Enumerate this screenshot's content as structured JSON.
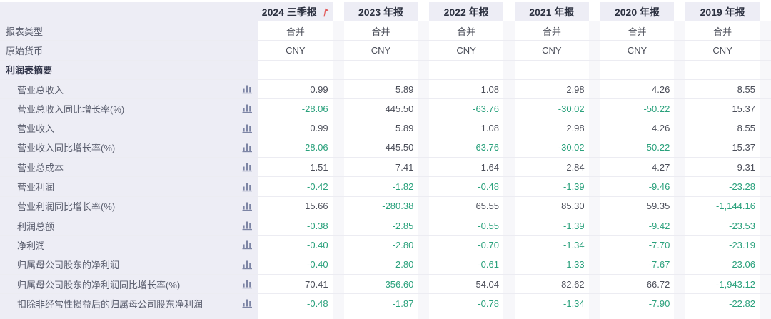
{
  "theme": {
    "header_bg": "#ededf5",
    "label_column_bg": "#ededf5",
    "negative_value_color": "#2aa17c",
    "positive_value_color": "#4c4f5a",
    "chart_icon_color": "#7d85a5",
    "flag_icon_color": "#e25a5a",
    "column_gap_color": "#f7f7fa"
  },
  "table": {
    "columns": [
      "2024 三季报",
      "2023 年报",
      "2022 年报",
      "2021 年报",
      "2020 年报",
      "2019 年报"
    ],
    "flagged_column_index": 0,
    "icons": {
      "flag": "flag-icon",
      "chart": "bar-chart-icon"
    },
    "rows": [
      {
        "kind": "plain",
        "label": "报表类型",
        "values": [
          "合并",
          "合并",
          "合并",
          "合并",
          "合并",
          "合并"
        ]
      },
      {
        "kind": "plain",
        "label": "原始货币",
        "values": [
          "CNY",
          "CNY",
          "CNY",
          "CNY",
          "CNY",
          "CNY"
        ]
      },
      {
        "kind": "section",
        "label": "利润表摘要",
        "values": [
          "",
          "",
          "",
          "",
          "",
          ""
        ]
      },
      {
        "kind": "metric",
        "label": "营业总收入",
        "values": [
          "0.99",
          "5.89",
          "1.08",
          "2.98",
          "4.26",
          "8.55"
        ]
      },
      {
        "kind": "metric",
        "label": "营业总收入同比增长率(%)",
        "values": [
          "-28.06",
          "445.50",
          "-63.76",
          "-30.02",
          "-50.22",
          "15.37"
        ]
      },
      {
        "kind": "metric",
        "label": "营业收入",
        "values": [
          "0.99",
          "5.89",
          "1.08",
          "2.98",
          "4.26",
          "8.55"
        ]
      },
      {
        "kind": "metric",
        "label": "营业收入同比增长率(%)",
        "values": [
          "-28.06",
          "445.50",
          "-63.76",
          "-30.02",
          "-50.22",
          "15.37"
        ]
      },
      {
        "kind": "metric",
        "label": "营业总成本",
        "values": [
          "1.51",
          "7.41",
          "1.64",
          "2.84",
          "4.27",
          "9.31"
        ]
      },
      {
        "kind": "metric",
        "label": "营业利润",
        "values": [
          "-0.42",
          "-1.82",
          "-0.48",
          "-1.39",
          "-9.46",
          "-23.28"
        ]
      },
      {
        "kind": "metric",
        "label": "营业利润同比增长率(%)",
        "values": [
          "15.66",
          "-280.38",
          "65.55",
          "85.30",
          "59.35",
          "-1,144.16"
        ]
      },
      {
        "kind": "metric",
        "label": "利润总额",
        "values": [
          "-0.38",
          "-2.85",
          "-0.55",
          "-1.39",
          "-9.42",
          "-23.53"
        ]
      },
      {
        "kind": "metric",
        "label": "净利润",
        "values": [
          "-0.40",
          "-2.80",
          "-0.70",
          "-1.34",
          "-7.70",
          "-23.19"
        ]
      },
      {
        "kind": "metric",
        "label": "归属母公司股东的净利润",
        "values": [
          "-0.40",
          "-2.80",
          "-0.61",
          "-1.33",
          "-7.67",
          "-23.06"
        ]
      },
      {
        "kind": "metric",
        "label": "归属母公司股东的净利润同比增长率(%)",
        "values": [
          "70.41",
          "-356.60",
          "54.04",
          "82.62",
          "66.72",
          "-1,943.12"
        ]
      },
      {
        "kind": "metric",
        "label": "扣除非经常性损益后的归属母公司股东净利润",
        "values": [
          "-0.48",
          "-1.87",
          "-0.78",
          "-1.34",
          "-7.90",
          "-22.82"
        ]
      }
    ]
  }
}
